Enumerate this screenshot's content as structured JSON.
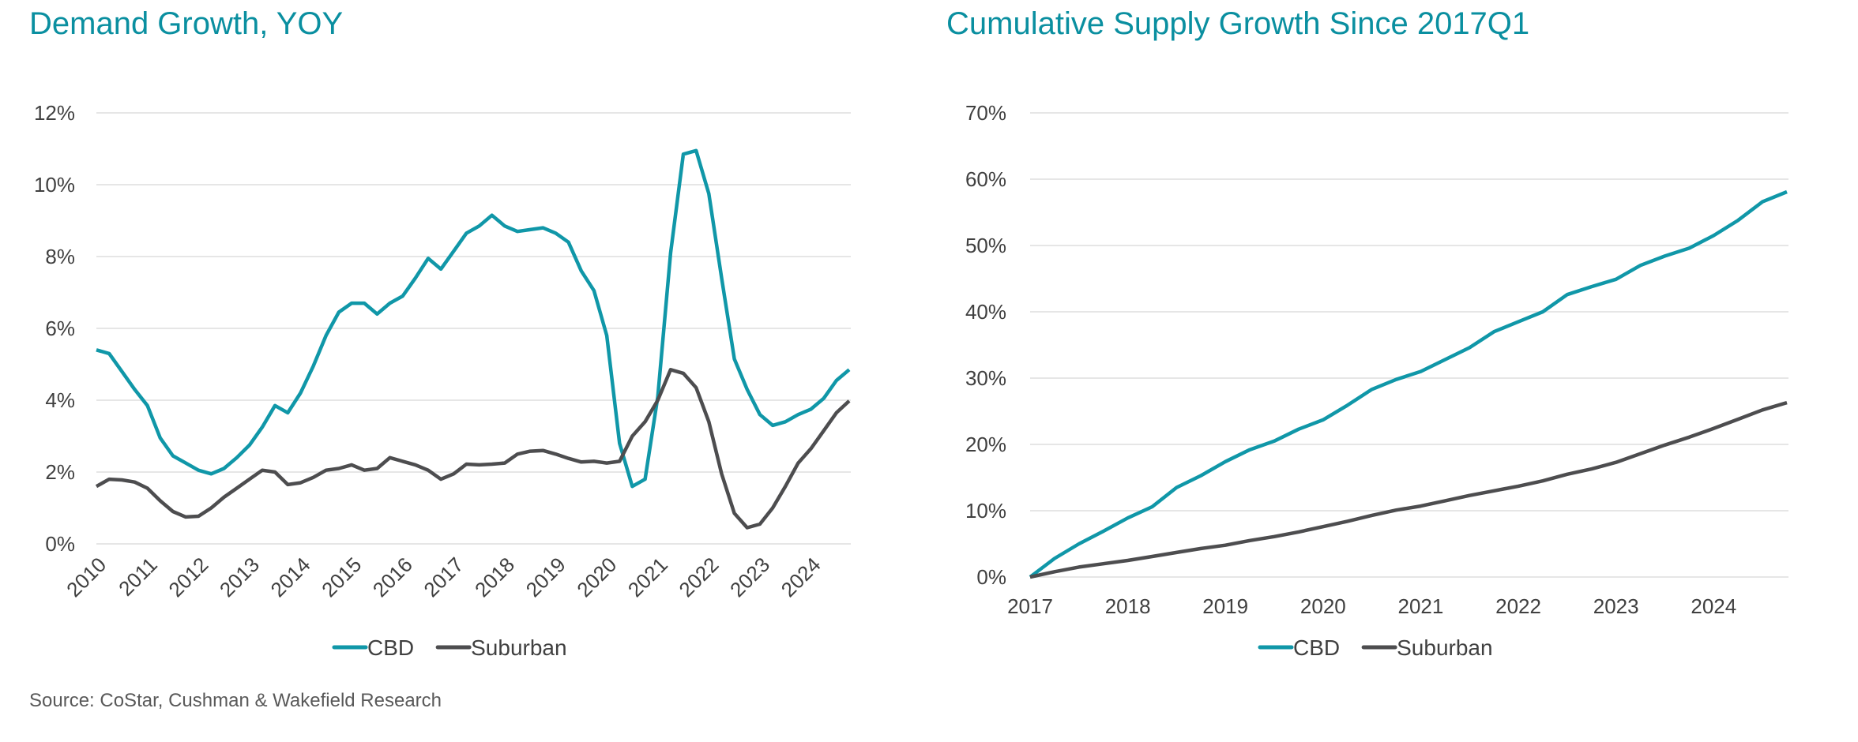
{
  "source": "Source: CoStar, Cushman & Wakefield Research",
  "colors": {
    "CBD": "#1097a8",
    "Suburban": "#4d4d4f",
    "title": "#0a8fa0",
    "grid": "#e6e6e6"
  },
  "chart_data": [
    {
      "type": "line",
      "title": "Demand Growth, YOY",
      "x_frequency": "quarterly",
      "x_start": "2010Q1",
      "x_end": "2024Q4",
      "x_tick_labels": [
        "2010",
        "2011",
        "2012",
        "2013",
        "2014",
        "2015",
        "2016",
        "2017",
        "2018",
        "2019",
        "2020",
        "2021",
        "2022",
        "2023",
        "2024"
      ],
      "y_tick_labels": [
        "0%",
        "2%",
        "4%",
        "6%",
        "8%",
        "10%",
        "12%"
      ],
      "ylim": [
        0,
        12
      ],
      "y_unit": "%",
      "grid": "horizontal",
      "legend": "bottom",
      "series": [
        {
          "name": "CBD",
          "values": [
            5.4,
            5.3,
            4.8,
            4.3,
            3.85,
            2.95,
            2.45,
            2.25,
            2.05,
            1.95,
            2.1,
            2.4,
            2.75,
            3.25,
            3.85,
            3.65,
            4.2,
            4.95,
            5.8,
            6.45,
            6.7,
            6.7,
            6.4,
            6.7,
            6.9,
            7.4,
            7.95,
            7.65,
            8.15,
            8.65,
            8.85,
            9.15,
            8.85,
            8.7,
            8.75,
            8.8,
            8.65,
            8.4,
            7.6,
            7.05,
            5.8,
            2.8,
            1.6,
            1.8,
            4.1,
            8.1,
            10.85,
            10.95,
            9.75,
            7.4,
            5.15,
            4.3,
            3.6,
            3.3,
            3.4,
            3.6,
            3.75,
            4.05,
            4.55,
            4.85
          ]
        },
        {
          "name": "Suburban",
          "values": [
            1.6,
            1.8,
            1.78,
            1.72,
            1.55,
            1.2,
            0.9,
            0.75,
            0.77,
            1.0,
            1.3,
            1.55,
            1.8,
            2.05,
            2.0,
            1.65,
            1.7,
            1.85,
            2.05,
            2.1,
            2.2,
            2.05,
            2.1,
            2.4,
            2.3,
            2.2,
            2.05,
            1.8,
            1.95,
            2.22,
            2.2,
            2.22,
            2.25,
            2.5,
            2.58,
            2.6,
            2.5,
            2.38,
            2.28,
            2.3,
            2.25,
            2.3,
            3.0,
            3.4,
            4.0,
            4.85,
            4.75,
            4.35,
            3.4,
            1.95,
            0.85,
            0.45,
            0.55,
            1.0,
            1.6,
            2.25,
            2.65,
            3.15,
            3.65,
            3.98
          ]
        }
      ]
    },
    {
      "type": "line",
      "title": "Cumulative Supply Growth Since 2017Q1",
      "x_frequency": "quarterly",
      "x_start": "2017Q1",
      "x_end": "2024Q4",
      "x_tick_labels": [
        "2017",
        "2018",
        "2019",
        "2020",
        "2021",
        "2022",
        "2023",
        "2024"
      ],
      "y_tick_labels": [
        "0%",
        "10%",
        "20%",
        "30%",
        "40%",
        "50%",
        "60%",
        "70%"
      ],
      "ylim": [
        0,
        70
      ],
      "y_unit": "%",
      "grid": "horizontal",
      "legend": "bottom",
      "series": [
        {
          "name": "CBD",
          "values": [
            0,
            2.8,
            5.0,
            6.9,
            8.9,
            10.6,
            13.5,
            15.3,
            17.4,
            19.2,
            20.5,
            22.3,
            23.7,
            25.9,
            28.3,
            29.8,
            31.0,
            32.8,
            34.6,
            37.0,
            38.5,
            40.0,
            42.6,
            43.8,
            44.9,
            47.0,
            48.4,
            49.6,
            51.5,
            53.8,
            56.6,
            58.1
          ]
        },
        {
          "name": "Suburban",
          "values": [
            0,
            0.8,
            1.5,
            2.0,
            2.5,
            3.1,
            3.7,
            4.3,
            4.8,
            5.5,
            6.1,
            6.8,
            7.6,
            8.4,
            9.3,
            10.1,
            10.7,
            11.5,
            12.3,
            13.0,
            13.7,
            14.5,
            15.5,
            16.3,
            17.3,
            18.6,
            19.9,
            21.1,
            22.4,
            23.8,
            25.2,
            26.3
          ]
        }
      ]
    }
  ]
}
